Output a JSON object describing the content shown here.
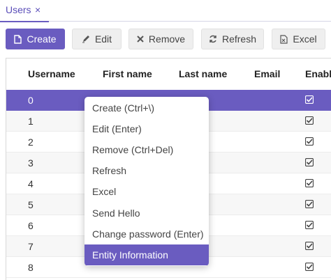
{
  "tab": {
    "label": "Users",
    "close_icon": "close-icon",
    "close_glyph": "×"
  },
  "toolbar": {
    "create_label": "Create",
    "edit_label": "Edit",
    "remove_label": "Remove",
    "refresh_label": "Refresh",
    "excel_label": "Excel"
  },
  "grid": {
    "columns": [
      "Username",
      "First name",
      "Last name",
      "Email",
      "Enabled"
    ],
    "rows": [
      {
        "username": "0",
        "enabled": true,
        "selected": true
      },
      {
        "username": "1",
        "enabled": true
      },
      {
        "username": "2",
        "enabled": true
      },
      {
        "username": "3",
        "enabled": true
      },
      {
        "username": "4",
        "enabled": true
      },
      {
        "username": "5",
        "enabled": true
      },
      {
        "username": "6",
        "enabled": true
      },
      {
        "username": "7",
        "enabled": true
      },
      {
        "username": "8",
        "enabled": true
      }
    ]
  },
  "context_menu": {
    "items": [
      "Create (Ctrl+\\)",
      "Edit (Enter)",
      "Remove (Ctrl+Del)",
      "Refresh",
      "Excel",
      "Send Hello",
      "Change password (Enter)",
      "Entity Information"
    ],
    "active": "Entity Information"
  },
  "colors": {
    "accent": "#6a5cc0",
    "button_bg": "#efefef",
    "row_alt": "#f7f7f7"
  }
}
